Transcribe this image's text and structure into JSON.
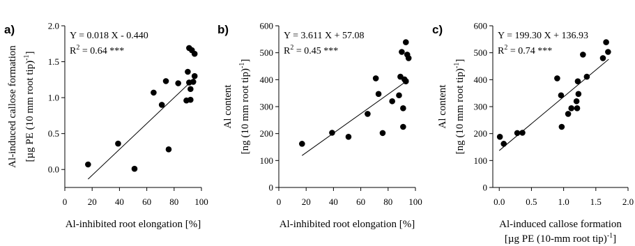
{
  "chart_data": [
    {
      "type": "scatter",
      "panel": "a)",
      "xlabel": "Al-inhibited root elongation [%]",
      "ylabel_lines": [
        "Al-induced callose formation",
        "[µg PE (10 mm root tip)",
        "-1",
        "]"
      ],
      "xlim": [
        0,
        100
      ],
      "ylim": [
        -0.25,
        2.0
      ],
      "xticks": [
        0,
        20,
        40,
        60,
        80,
        100
      ],
      "yticks": [
        0.0,
        0.5,
        1.0,
        1.5,
        2.0
      ],
      "xtick_labels": [
        "0",
        "20",
        "40",
        "60",
        "80",
        "100"
      ],
      "ytick_labels": [
        "0.0",
        "0.5",
        "1.0",
        "1.5",
        "2.0"
      ],
      "equation": "Y = 0.018 X - 0.440",
      "r2_prefix": "R",
      "r2_power": "2",
      "r2_value": " = 0.64 ***",
      "regression": {
        "slope": 0.018,
        "intercept": -0.44,
        "x_range": [
          17,
          95
        ]
      },
      "points": [
        {
          "x": 17,
          "y": 0.07
        },
        {
          "x": 39,
          "y": 0.36
        },
        {
          "x": 51,
          "y": 0.01
        },
        {
          "x": 65,
          "y": 1.07
        },
        {
          "x": 71,
          "y": 0.9
        },
        {
          "x": 74,
          "y": 1.23
        },
        {
          "x": 76,
          "y": 0.28
        },
        {
          "x": 83,
          "y": 1.2
        },
        {
          "x": 89,
          "y": 0.96
        },
        {
          "x": 90,
          "y": 1.36
        },
        {
          "x": 91,
          "y": 1.69
        },
        {
          "x": 91,
          "y": 1.21
        },
        {
          "x": 92,
          "y": 1.12
        },
        {
          "x": 92,
          "y": 0.97
        },
        {
          "x": 93,
          "y": 1.66
        },
        {
          "x": 94,
          "y": 1.22
        },
        {
          "x": 95,
          "y": 1.3
        },
        {
          "x": 95,
          "y": 1.61
        }
      ]
    },
    {
      "type": "scatter",
      "panel": "b)",
      "xlabel": "Al-inhibited root elongation [%]",
      "ylabel_lines": [
        "Al content",
        "[ng (10 mm root tip)",
        "-1",
        "]"
      ],
      "xlim": [
        0,
        100
      ],
      "ylim": [
        0,
        600
      ],
      "xticks": [
        0,
        20,
        40,
        60,
        80,
        100
      ],
      "yticks": [
        0,
        100,
        200,
        300,
        400,
        500,
        600
      ],
      "xtick_labels": [
        "0",
        "20",
        "40",
        "60",
        "80",
        "100"
      ],
      "ytick_labels": [
        "0",
        "100",
        "200",
        "300",
        "400",
        "500",
        "600"
      ],
      "equation": "Y = 3.611 X + 57.08",
      "r2_prefix": "R",
      "r2_power": "2",
      "r2_value": " = 0.45 ***",
      "regression": {
        "slope": 3.611,
        "intercept": 57.08,
        "x_range": [
          17,
          95
        ]
      },
      "points": [
        {
          "x": 17,
          "y": 162
        },
        {
          "x": 39,
          "y": 203
        },
        {
          "x": 51,
          "y": 188
        },
        {
          "x": 65,
          "y": 273
        },
        {
          "x": 71,
          "y": 405
        },
        {
          "x": 73,
          "y": 347
        },
        {
          "x": 76,
          "y": 202
        },
        {
          "x": 83,
          "y": 320
        },
        {
          "x": 88,
          "y": 342
        },
        {
          "x": 89,
          "y": 411
        },
        {
          "x": 90,
          "y": 503
        },
        {
          "x": 91,
          "y": 294
        },
        {
          "x": 91,
          "y": 225
        },
        {
          "x": 93,
          "y": 539
        },
        {
          "x": 93,
          "y": 394
        },
        {
          "x": 94,
          "y": 493
        },
        {
          "x": 95,
          "y": 480
        },
        {
          "x": 92,
          "y": 401
        }
      ]
    },
    {
      "type": "scatter",
      "panel": "c)",
      "xlabel_lines": [
        "Al-induced callose formation",
        "[µg PE (10-mm root tip)",
        "-1",
        "]"
      ],
      "ylabel_lines": [
        "Al content",
        "[ng (10 mm root tip)",
        "-1",
        "]"
      ],
      "xlim": [
        -0.1,
        2.0
      ],
      "ylim": [
        0,
        600
      ],
      "xticks": [
        0.0,
        0.5,
        1.0,
        1.5,
        2.0
      ],
      "yticks": [
        0,
        100,
        200,
        300,
        400,
        500,
        600
      ],
      "xtick_labels": [
        "0.0",
        "0.5",
        "1.0",
        "1.5",
        "2.0"
      ],
      "ytick_labels": [
        "0",
        "100",
        "200",
        "300",
        "400",
        "500",
        "600"
      ],
      "equation": "Y = 199.30 X + 136.93",
      "r2_prefix": "R",
      "r2_power": "2",
      "r2_value": " = 0.74 ***",
      "regression": {
        "slope": 199.3,
        "intercept": 136.93,
        "x_range": [
          0.0,
          1.7
        ]
      },
      "points": [
        {
          "x": 0.01,
          "y": 188
        },
        {
          "x": 0.07,
          "y": 162
        },
        {
          "x": 0.28,
          "y": 202
        },
        {
          "x": 0.36,
          "y": 203
        },
        {
          "x": 0.9,
          "y": 405
        },
        {
          "x": 0.96,
          "y": 342
        },
        {
          "x": 0.97,
          "y": 225
        },
        {
          "x": 1.07,
          "y": 273
        },
        {
          "x": 1.12,
          "y": 294
        },
        {
          "x": 1.2,
          "y": 320
        },
        {
          "x": 1.21,
          "y": 294
        },
        {
          "x": 1.22,
          "y": 394
        },
        {
          "x": 1.23,
          "y": 347
        },
        {
          "x": 1.3,
          "y": 493
        },
        {
          "x": 1.36,
          "y": 411
        },
        {
          "x": 1.61,
          "y": 480
        },
        {
          "x": 1.66,
          "y": 539
        },
        {
          "x": 1.69,
          "y": 503
        }
      ]
    }
  ]
}
